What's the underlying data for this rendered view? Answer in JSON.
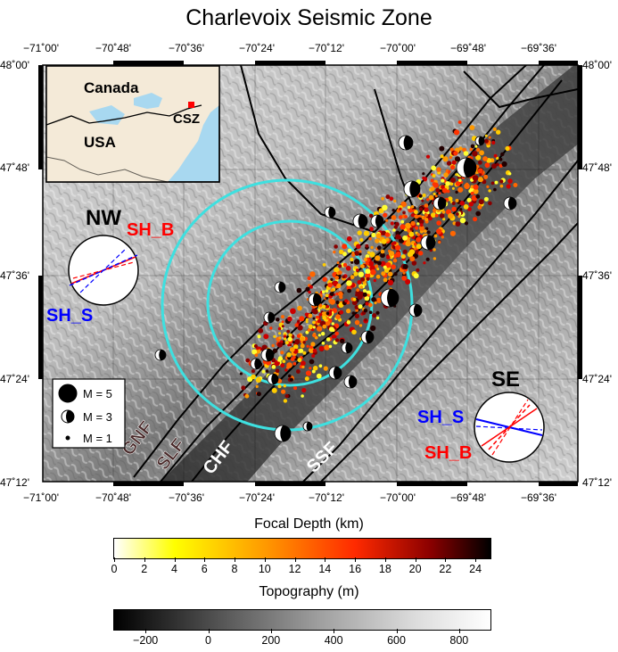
{
  "title": "Charlevoix Seismic Zone",
  "axes": {
    "lon_labels": [
      "−71˚00'",
      "−70˚48'",
      "−70˚36'",
      "−70˚24'",
      "−70˚12'",
      "−70˚00'",
      "−69˚48'",
      "−69˚36'"
    ],
    "lat_labels": [
      "48˚00'",
      "47˚48'",
      "47˚36'",
      "47˚24'",
      "47˚12'"
    ]
  },
  "inset": {
    "country_top": "Canada",
    "country_bottom": "USA",
    "marker_label": "CSZ",
    "marker_color": "#ff0000",
    "ocean_color": "#a8d8f0",
    "land_color": "#f4ead8"
  },
  "stress": {
    "nw": {
      "label": "NW",
      "sh_b": "SH_B",
      "sh_s": "SH_S"
    },
    "se": {
      "label": "SE",
      "sh_s": "SH_S",
      "sh_b": "SH_B"
    },
    "sh_b_color": "#ff0000",
    "sh_s_color": "#0000ff"
  },
  "legend": {
    "items": [
      {
        "label": "M = 5"
      },
      {
        "label": "M = 3"
      },
      {
        "label": "M = 1"
      }
    ]
  },
  "faults": [
    "GNF",
    "SLF",
    "CHF",
    "SSF"
  ],
  "circles_color": "#3ee0e0",
  "colorbar_depth": {
    "title": "Focal Depth (km)",
    "ticks": [
      "0",
      "2",
      "4",
      "6",
      "8",
      "10",
      "12",
      "14",
      "16",
      "18",
      "20",
      "22",
      "24"
    ],
    "range": [
      0,
      25
    ],
    "stops": [
      "#ffffff",
      "#ffff00",
      "#ff8c00",
      "#ff0000",
      "#8b0000",
      "#000000"
    ]
  },
  "colorbar_topo": {
    "title": "Topography (m)",
    "ticks": [
      "−200",
      "0",
      "200",
      "400",
      "600",
      "800"
    ],
    "range": [
      -300,
      900
    ],
    "stops": [
      "#000000",
      "#ffffff"
    ]
  }
}
